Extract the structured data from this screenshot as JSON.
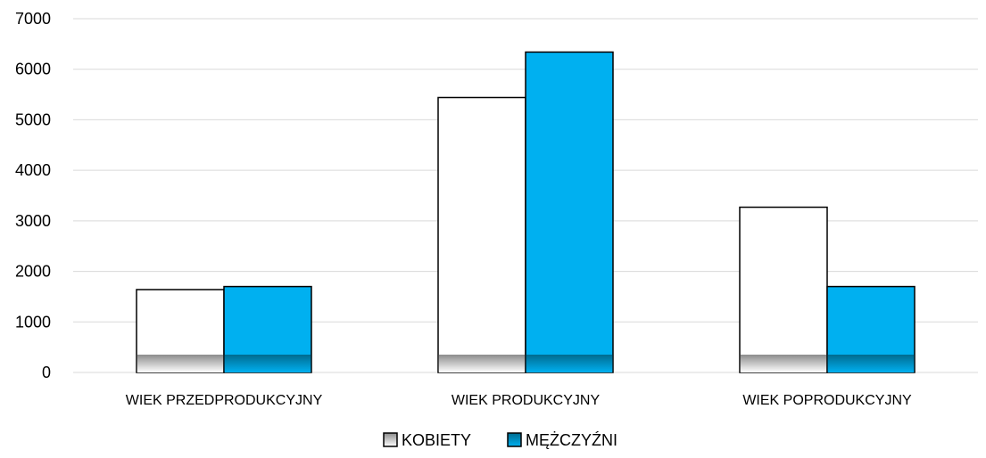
{
  "chart_data": {
    "type": "bar",
    "categories": [
      "WIEK PRZEDPRODUKCYJNY",
      "WIEK PRODUKCYJNY",
      "WIEK POPRODUKCYJNY"
    ],
    "series": [
      {
        "name": "KOBIETY",
        "values": [
          1640,
          5440,
          3270
        ],
        "color": "#ffffff",
        "base_color": "#8c8c8c"
      },
      {
        "name": "MĘŻCZYŹNI",
        "values": [
          1700,
          6340,
          1700
        ],
        "color": "#00b0f0",
        "base_color": "#006b8f"
      }
    ],
    "title": "",
    "xlabel": "",
    "ylabel": "",
    "ylim": [
      0,
      7000
    ],
    "yticks": [
      0,
      1000,
      2000,
      3000,
      4000,
      5000,
      6000,
      7000
    ],
    "grid": true,
    "legend": "bottom"
  },
  "colors": {
    "gridline": "#d9d9d9",
    "bar_stroke": "#000000"
  }
}
